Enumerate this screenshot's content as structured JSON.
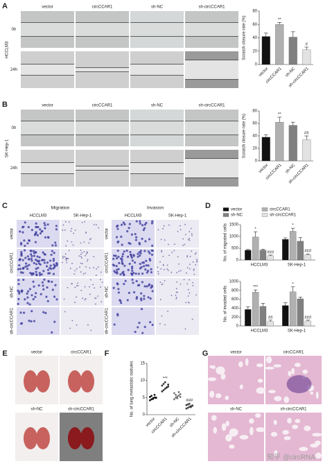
{
  "panel_a": {
    "letter": "A",
    "columns": [
      "vector",
      "circCCAR1",
      "sh-NC",
      "sh-circCCAR1"
    ],
    "rows": [
      "0h",
      "24h"
    ],
    "cell_line": "HCCLM3"
  },
  "panel_b": {
    "letter": "B",
    "columns": [
      "vector",
      "circCCAR1",
      "sh-NC",
      "sh-circCCAR1"
    ],
    "rows": [
      "0h",
      "24h"
    ],
    "cell_line": "SK-Hep-1"
  },
  "panel_c": {
    "letter": "C",
    "sections": [
      {
        "title": "Migration",
        "columns": [
          "HCCLM3",
          "SK-Hep-1"
        ],
        "rows": [
          "vector",
          "circCCAR1",
          "sh-NC",
          "sh-circCCAR1"
        ]
      },
      {
        "title": "Invasion",
        "columns": [
          "HCCLM3",
          "SK-Hep-1"
        ],
        "rows": [
          "vector",
          "circCCAR1",
          "sh-NC",
          "sh-circCCAR1"
        ]
      }
    ]
  },
  "panel_d": {
    "letter": "D"
  },
  "panel_e": {
    "letter": "E",
    "labels": [
      "vector",
      "circCCAR1",
      "sh-NC",
      "sh-circCCAR1"
    ]
  },
  "panel_f": {
    "letter": "F"
  },
  "panel_g": {
    "letter": "G",
    "labels": [
      "vector",
      "circCCAR1",
      "sh-NC",
      "sh-circCCAR1"
    ]
  },
  "watermark": "知乎 @circRNA",
  "chart_data": [
    {
      "type": "bar",
      "y_label": "Scratch closure rate (%)",
      "categories": [
        "vector",
        "circCCAR1",
        "sh-NC",
        "sh-circCCAR1"
      ],
      "values": [
        42,
        60,
        41,
        22
      ],
      "errors": [
        5,
        3,
        8,
        4
      ],
      "annotations": [
        null,
        "**",
        null,
        "#"
      ],
      "colors": [
        "#111111",
        "#b0b0b0",
        "#808080",
        "#e2e2e2"
      ],
      "ylim": [
        0,
        80
      ],
      "yticks": [
        0,
        20,
        40,
        60,
        80
      ]
    },
    {
      "type": "bar",
      "y_label": "Scratch closure rate (%)",
      "categories": [
        "vector",
        "circCCAR1",
        "sh-NC",
        "sh-circCCAR1"
      ],
      "values": [
        38,
        62,
        57,
        34
      ],
      "errors": [
        4,
        8,
        5,
        6
      ],
      "annotations": [
        null,
        "**",
        null,
        "##"
      ],
      "colors": [
        "#111111",
        "#b0b0b0",
        "#808080",
        "#e2e2e2"
      ],
      "ylim": [
        0,
        80
      ],
      "yticks": [
        0,
        20,
        40,
        60,
        80
      ]
    },
    {
      "type": "grouped_bar",
      "y_label": "No. of migrated cells",
      "categories": [
        "HCCLM3",
        "SK-Hep-1"
      ],
      "legend": true,
      "series": [
        {
          "name": "vector",
          "color": "#111111",
          "values": [
            420,
            880
          ],
          "errors": [
            30,
            60
          ],
          "annotations": [
            null,
            null
          ]
        },
        {
          "name": "circCCAR1",
          "color": "#b0b0b0",
          "values": [
            980,
            1220
          ],
          "errors": [
            220,
            130
          ],
          "annotations": [
            "*",
            "*"
          ]
        },
        {
          "name": "sh-NC",
          "color": "#808080",
          "values": [
            420,
            800
          ],
          "errors": [
            40,
            150
          ],
          "annotations": [
            null,
            null
          ]
        },
        {
          "name": "sh-circCCAR1",
          "color": "#e2e2e2",
          "values": [
            180,
            220
          ],
          "errors": [
            30,
            40
          ],
          "annotations": [
            "###",
            "###"
          ]
        }
      ],
      "ylim": [
        0,
        1500
      ],
      "yticks": [
        0,
        500,
        1000,
        1500
      ]
    },
    {
      "type": "grouped_bar",
      "y_label": "No. of invaded cells",
      "categories": [
        "HCCLM3",
        "SK-Hep-1"
      ],
      "legend": false,
      "series": [
        {
          "name": "vector",
          "color": "#111111",
          "values": [
            370,
            460
          ],
          "errors": [
            60,
            60
          ],
          "annotations": [
            null,
            null
          ]
        },
        {
          "name": "circCCAR1",
          "color": "#b0b0b0",
          "values": [
            760,
            770
          ],
          "errors": [
            50,
            110
          ],
          "annotations": [
            "***",
            "*"
          ]
        },
        {
          "name": "sh-NC",
          "color": "#808080",
          "values": [
            440,
            610
          ],
          "errors": [
            70,
            40
          ],
          "annotations": [
            null,
            null
          ]
        },
        {
          "name": "sh-circCCAR1",
          "color": "#e2e2e2",
          "values": [
            100,
            110
          ],
          "errors": [
            30,
            20
          ],
          "annotations": [
            "##",
            "###"
          ]
        }
      ],
      "ylim": [
        0,
        1000
      ],
      "yticks": [
        0,
        200,
        400,
        600,
        800,
        1000
      ]
    },
    {
      "type": "dot",
      "y_label": "No. of lung metastatic nodules",
      "categories": [
        "vector",
        "circCCAR1",
        "sh-NC",
        "sh-circCCAR1"
      ],
      "values": [
        [
          4.2,
          4.5,
          4.8,
          5,
          5,
          5.2,
          5.5,
          4.6,
          5.8,
          4.9
        ],
        [
          6.8,
          7.2,
          7.6,
          8,
          8.2,
          8.5,
          9,
          9.5,
          7.9,
          8.8
        ],
        [
          4.5,
          5,
          5.3,
          5.6,
          6,
          6.3,
          5.8,
          4.8,
          6.6,
          5.2
        ],
        [
          1.8,
          2,
          2.3,
          2.5,
          2.6,
          2.8,
          3,
          3.2,
          2.2,
          2.7
        ]
      ],
      "annotations": [
        null,
        "***",
        null,
        "###"
      ],
      "colors": [
        "#111111",
        "#333333",
        "#777777",
        "#444444"
      ],
      "ylim": [
        0,
        15
      ],
      "yticks": [
        0,
        5,
        10,
        15
      ]
    }
  ]
}
